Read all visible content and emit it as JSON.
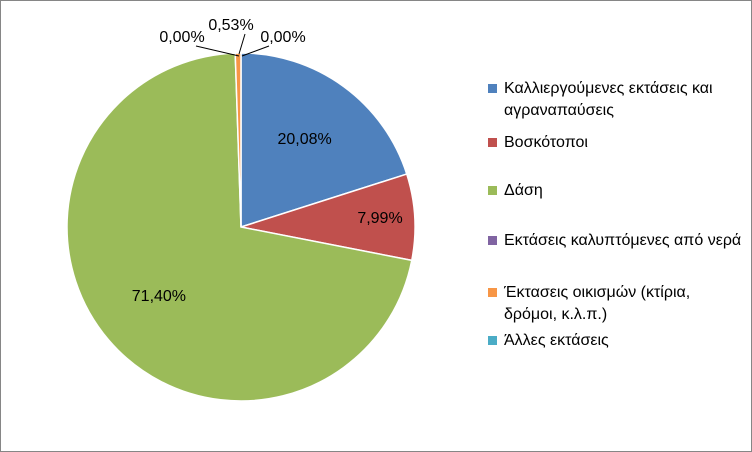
{
  "chart_data": {
    "type": "pie",
    "title": "",
    "categories": [
      "Καλλιεργούμενες εκτάσεις και αγραναπαύσεις",
      "Βοσκότοποι",
      "Δάση",
      "Εκτάσεις καλυπτόμενες από νερά",
      "Έκτασεις οικισμών (κτίρια, δρόμοι, κ.λ.π.)",
      "Άλλες εκτάσεις"
    ],
    "values": [
      20.08,
      7.99,
      71.4,
      0.0,
      0.53,
      0.0
    ],
    "data_labels": [
      "20,08%",
      "7,99%",
      "71,40%",
      "0,00%",
      "0,53%",
      "0,00%"
    ],
    "colors": [
      "#4F81BD",
      "#C0504D",
      "#9BBB59",
      "#8064A2",
      "#F79646",
      "#4BACC6"
    ],
    "legend_position": "right"
  }
}
